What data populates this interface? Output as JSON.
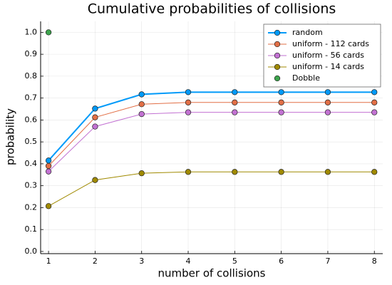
{
  "chart_data": {
    "type": "line",
    "title": "Cumulative probabilities of collisions",
    "xlabel": "number of collisions",
    "ylabel": "probability",
    "x": [
      1,
      2,
      3,
      4,
      5,
      6,
      7,
      8
    ],
    "series": [
      {
        "name": "random",
        "color": "#009af9",
        "line_width": 2,
        "values": [
          0.415,
          0.652,
          0.717,
          0.727,
          0.727,
          0.727,
          0.727,
          0.727
        ]
      },
      {
        "name": "uniform - 112 cards",
        "color": "#e26f46",
        "line_width": 1,
        "values": [
          0.39,
          0.612,
          0.672,
          0.68,
          0.68,
          0.68,
          0.68,
          0.68
        ]
      },
      {
        "name": "uniform - 56 cards",
        "color": "#c271d2",
        "line_width": 1,
        "values": [
          0.365,
          0.57,
          0.627,
          0.635,
          0.635,
          0.635,
          0.635,
          0.635
        ]
      },
      {
        "name": "uniform - 14 cards",
        "color": "#a08a00",
        "line_width": 1,
        "values": [
          0.207,
          0.326,
          0.357,
          0.363,
          0.363,
          0.363,
          0.363,
          0.363
        ]
      },
      {
        "name": "Dobble",
        "color": "#3da44d",
        "mode": "markers",
        "x": [
          1
        ],
        "values": [
          1.0
        ]
      }
    ],
    "xlim": [
      0.83,
      8.18
    ],
    "xticks": [
      1,
      2,
      3,
      4,
      5,
      6,
      7,
      8
    ],
    "ylim": [
      -0.01,
      1.05
    ],
    "yticks": [
      {
        "value": 0,
        "label": "0.0"
      },
      0.1,
      0.2,
      0.3,
      0.4,
      0.5,
      0.6,
      0.7,
      0.8,
      0.9,
      {
        "value": 1,
        "label": "1.0"
      }
    ],
    "grid": true,
    "legend": "top-right"
  }
}
